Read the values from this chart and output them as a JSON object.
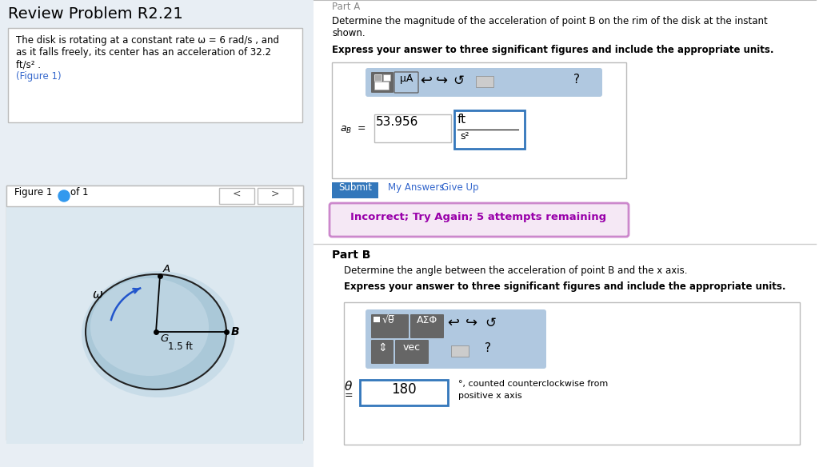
{
  "bg_color": "#e8eef4",
  "white": "#ffffff",
  "title": "Review Problem R2.21",
  "prob_line1": "The disk is rotating at a constant rate ω = 6 rad/s , and",
  "prob_line2": "as it falls freely, its center has an acceleration of 32.2",
  "prob_line3": "ft/s² .",
  "figure_link": "(Figure 1)",
  "part_a_label": "Part A",
  "part_a_q1": "Determine the magnitude of the acceleration of point B on the rim of the disk at the instant",
  "part_a_q2": "shown.",
  "express": "Express your answer to three significant figures and include the appropriate units.",
  "a_B_value": "53.956",
  "units_top": "ft",
  "units_bot": "s",
  "submit_text": "Submit",
  "my_answers": "My Answers",
  "give_up": "Give Up",
  "incorrect": "Incorrect; Try Again; 5 attempts remaining",
  "part_b_label": "Part B",
  "part_b_q1": "Determine the angle between the acceleration of point B and the x axis.",
  "theta_value": "180",
  "ccw_line1": "°, counted counterclockwise from",
  "ccw_line2": "positive x axis",
  "disk_label": "1.5 ft",
  "omega_sym": "ω",
  "pt_A": "A",
  "pt_B": "B",
  "pt_G": "G",
  "figure_label": "Figure 1",
  "of_label": "of 1",
  "mua_text": "μȦ",
  "toolbar_color": "#b0c8e0",
  "btn_color": "#666666",
  "submit_color": "#3377bb",
  "incorrect_bg": "#f5e8f5",
  "incorrect_border": "#cc88cc",
  "incorrect_text": "#9900aa",
  "link_color": "#3366cc",
  "gray_text": "#888888",
  "input_border": "#3377bb",
  "disk_fill": "#aac8d8",
  "disk_edge": "#222222",
  "panel_border": "#bbbbbb",
  "divider_color": "#cccccc"
}
